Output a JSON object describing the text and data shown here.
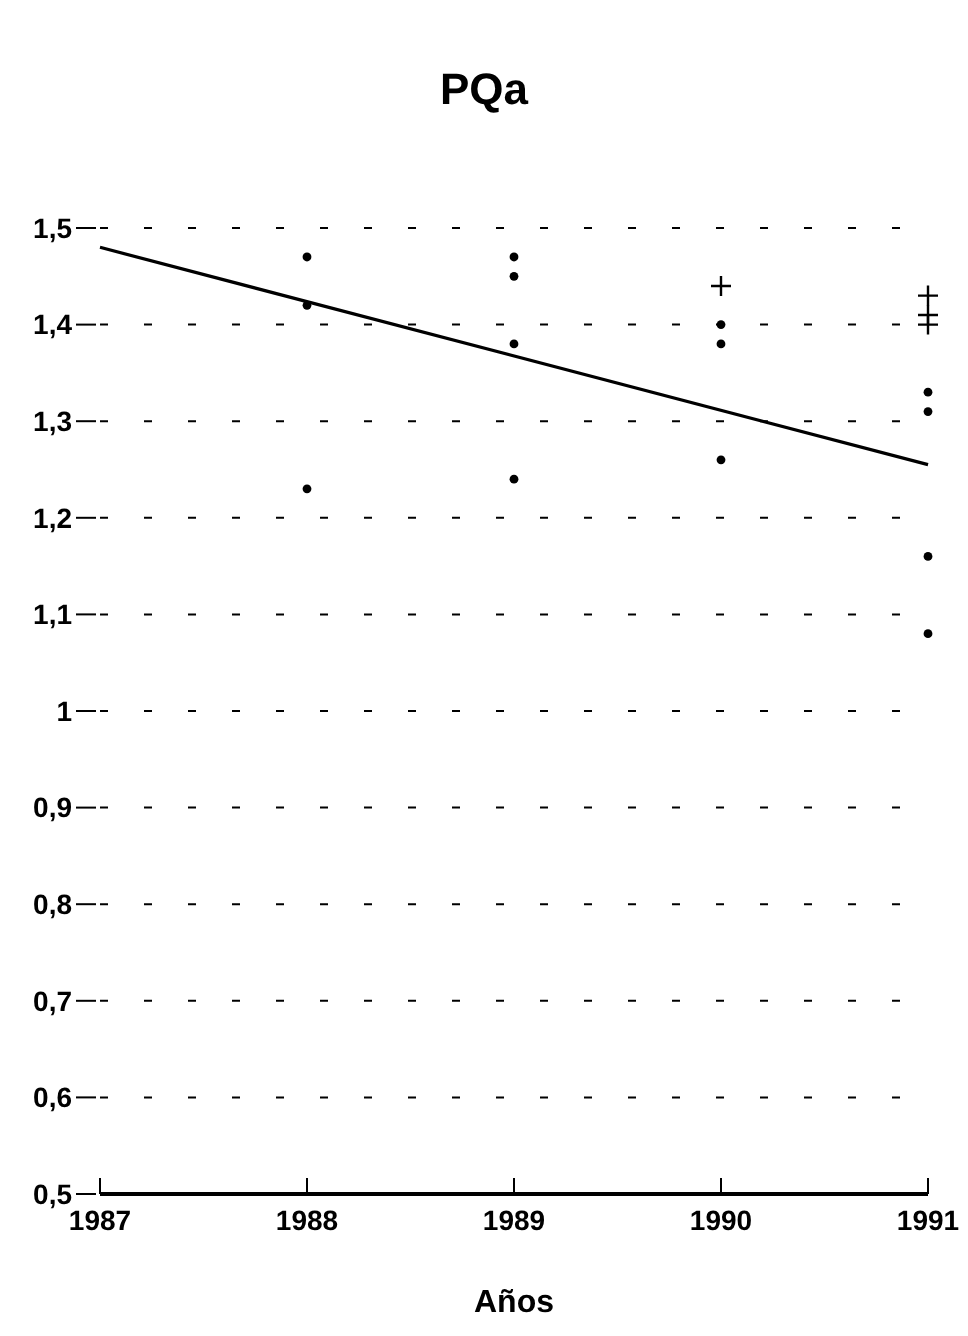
{
  "chart_data": {
    "type": "scatter",
    "title": "PQa",
    "xlabel": "Años",
    "xlim": [
      1987,
      1991
    ],
    "xticks": [
      1987,
      1988,
      1989,
      1990,
      1991
    ],
    "ylim": [
      0.5,
      1.5
    ],
    "yticks": [
      {
        "value": 0.5,
        "label": "0,5"
      },
      {
        "value": 0.6,
        "label": "0,6"
      },
      {
        "value": 0.7,
        "label": "0,7"
      },
      {
        "value": 0.8,
        "label": "0,8"
      },
      {
        "value": 0.9,
        "label": "0,9"
      },
      {
        "value": 1,
        "label": "1"
      },
      {
        "value": 1.1,
        "label": "1,1"
      },
      {
        "value": 1.2,
        "label": "1,2"
      },
      {
        "value": 1.3,
        "label": "1,3"
      },
      {
        "value": 1.4,
        "label": "1,4"
      },
      {
        "value": 1.5,
        "label": "1,5"
      }
    ],
    "grid": "y",
    "series": [
      {
        "marker": "circle",
        "color": "#000000",
        "x": [
          1988,
          1988,
          1988,
          1989,
          1989,
          1989,
          1989,
          1990,
          1990,
          1990,
          1991,
          1991,
          1991,
          1991
        ],
        "values": [
          1.47,
          1.42,
          1.23,
          1.47,
          1.45,
          1.38,
          1.24,
          1.4,
          1.38,
          1.26,
          1.33,
          1.31,
          1.16,
          1.08
        ]
      },
      {
        "marker": "cross",
        "color": "#000000",
        "x": [
          1990,
          1991,
          1991,
          1991
        ],
        "values": [
          1.44,
          1.43,
          1.41,
          1.4
        ]
      },
      {
        "type": "line",
        "marker": "none",
        "color": "#000000",
        "x": [
          1987,
          1991
        ],
        "values": [
          1.48,
          1.255
        ]
      }
    ]
  }
}
